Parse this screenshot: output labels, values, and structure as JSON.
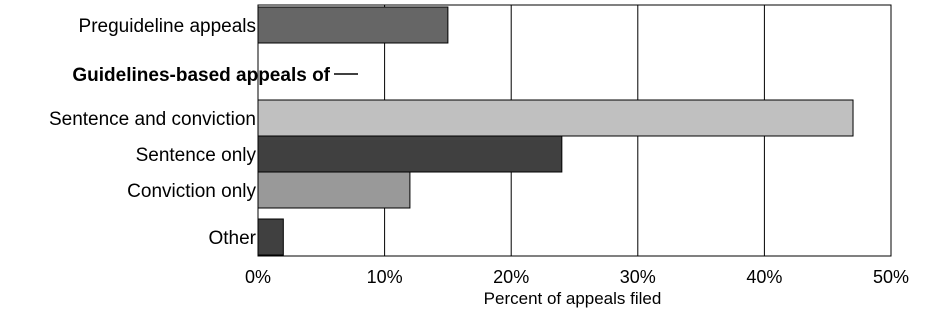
{
  "chart_data": {
    "type": "bar",
    "orientation": "horizontal",
    "categories": [
      "Preguideline appeals",
      "Sentence and conviction",
      "Sentence only",
      "Conviction only",
      "Other"
    ],
    "values": [
      15,
      47,
      24,
      12,
      2
    ],
    "bar_colors": [
      "#666666",
      "#c0c0c0",
      "#404040",
      "#999999",
      "#404040"
    ],
    "group_heading": "Guidelines-based appeals of",
    "xlabel": "Percent of appeals filed",
    "ylabel": "",
    "xlim": [
      0,
      50
    ],
    "xticks": [
      0,
      10,
      20,
      30,
      40,
      50
    ],
    "xtick_labels": [
      "0%",
      "10%",
      "20%",
      "30%",
      "40%",
      "50%"
    ],
    "grid": "vertical"
  }
}
